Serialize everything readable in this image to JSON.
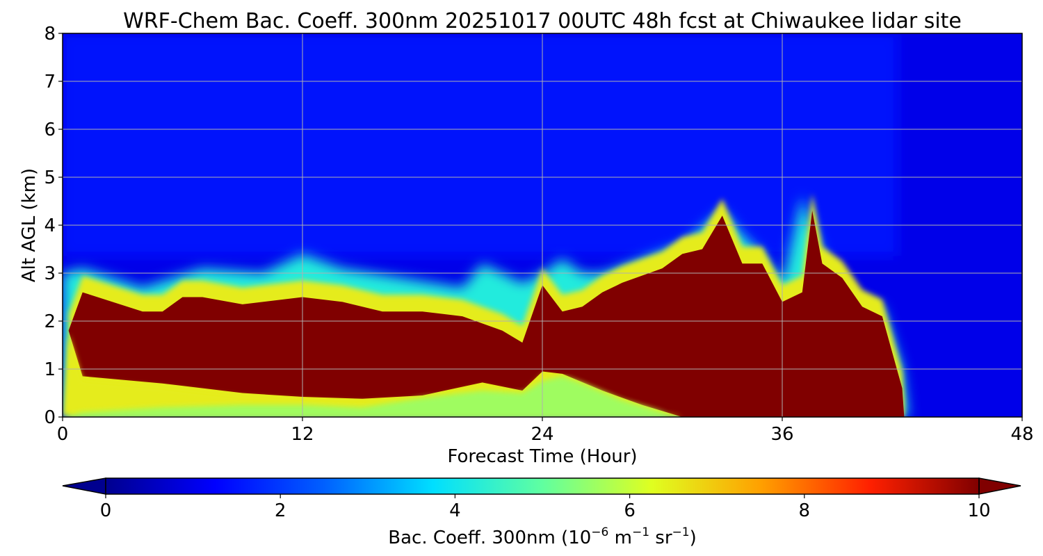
{
  "chart_data": {
    "type": "heatmap",
    "title": "WRF-Chem Bac. Coeff. 300nm  20251017 00UTC 48h fcst at Chiwaukee lidar site",
    "xlabel": "Forecast Time (Hour)",
    "ylabel": "Alt AGL (km)",
    "xlim": [
      0,
      48
    ],
    "ylim": [
      0,
      8
    ],
    "xticks": [
      0,
      12,
      24,
      36,
      48
    ],
    "yticks": [
      0,
      1,
      2,
      3,
      4,
      5,
      6,
      7,
      8
    ],
    "grid": true,
    "colormap": "jet",
    "colorbar": {
      "range": [
        0,
        10
      ],
      "ticks": [
        0,
        2,
        4,
        6,
        8,
        10
      ],
      "extend": "both",
      "label_main": "Bac. Coeff. 300nm  (10",
      "label_exp1": "−6",
      "label_mid1": " m",
      "label_exp2": "−1",
      "label_mid2": " sr",
      "label_exp3": "−1",
      "label_end": ")"
    },
    "regions": {
      "background_value": 1.0,
      "upper_value": 1.5,
      "halo_value": 4.2,
      "fringe_value": 6.5,
      "core_value": 10,
      "surface_low_value": 5.5,
      "top_band": [
        [
          0,
          3.0
        ],
        [
          1,
          3.1
        ],
        [
          4,
          2.7
        ],
        [
          7,
          3.1
        ],
        [
          10,
          3.0
        ],
        [
          12,
          3.4
        ],
        [
          14,
          3.1
        ],
        [
          17,
          2.9
        ],
        [
          20,
          2.7
        ],
        [
          21,
          3.2
        ],
        [
          22,
          3.0
        ],
        [
          23,
          2.8
        ],
        [
          24,
          3.0
        ],
        [
          25,
          3.3
        ],
        [
          26,
          3.0
        ],
        [
          27,
          3.0
        ],
        [
          29,
          3.3
        ],
        [
          31,
          3.6
        ],
        [
          33,
          4.3
        ],
        [
          34,
          3.8
        ],
        [
          35,
          3.4
        ],
        [
          36,
          2.8
        ],
        [
          37,
          4.6
        ],
        [
          38,
          3.4
        ],
        [
          39,
          2.5
        ],
        [
          41,
          2.3
        ],
        [
          42,
          1.0
        ],
        [
          42.3,
          0
        ]
      ],
      "core_top": [
        [
          0.3,
          1.8
        ],
        [
          1,
          2.6
        ],
        [
          4,
          2.2
        ],
        [
          5,
          2.2
        ],
        [
          6,
          2.5
        ],
        [
          7,
          2.5
        ],
        [
          9,
          2.35
        ],
        [
          12,
          2.5
        ],
        [
          14,
          2.4
        ],
        [
          16,
          2.2
        ],
        [
          18,
          2.2
        ],
        [
          20,
          2.1
        ],
        [
          22,
          1.8
        ],
        [
          23,
          1.55
        ],
        [
          24,
          2.75
        ],
        [
          25,
          2.2
        ],
        [
          26,
          2.3
        ],
        [
          27,
          2.6
        ],
        [
          28,
          2.8
        ],
        [
          30,
          3.1
        ],
        [
          31,
          3.4
        ],
        [
          32,
          3.5
        ],
        [
          33,
          4.2
        ],
        [
          34,
          3.2
        ],
        [
          35,
          3.2
        ],
        [
          36,
          2.4
        ],
        [
          37,
          2.6
        ],
        [
          37.5,
          4.3
        ],
        [
          38,
          3.2
        ],
        [
          39,
          2.9
        ],
        [
          40,
          2.3
        ],
        [
          41,
          2.1
        ],
        [
          42,
          0.6
        ],
        [
          42.1,
          0
        ]
      ],
      "core_bottom": [
        [
          0.3,
          1.8
        ],
        [
          1,
          0.85
        ],
        [
          5,
          0.7
        ],
        [
          9,
          0.5
        ],
        [
          12,
          0.42
        ],
        [
          15,
          0.38
        ],
        [
          18,
          0.45
        ],
        [
          21,
          0.72
        ],
        [
          23,
          0.55
        ],
        [
          24,
          0.95
        ],
        [
          25,
          0.9
        ],
        [
          27,
          0.55
        ],
        [
          29,
          0.25
        ],
        [
          31,
          0
        ]
      ],
      "surface_low": [
        [
          0,
          0
        ],
        [
          1,
          0.1
        ],
        [
          5,
          0.2
        ],
        [
          9,
          0.25
        ],
        [
          12,
          0.25
        ],
        [
          15,
          0.2
        ],
        [
          18,
          0.4
        ],
        [
          20,
          0.5
        ],
        [
          21,
          0.55
        ],
        [
          23,
          0.5
        ],
        [
          24,
          0.75
        ],
        [
          25,
          0.85
        ],
        [
          26,
          0.7
        ],
        [
          28,
          0.35
        ],
        [
          30,
          0.1
        ],
        [
          30.5,
          0
        ]
      ]
    }
  }
}
